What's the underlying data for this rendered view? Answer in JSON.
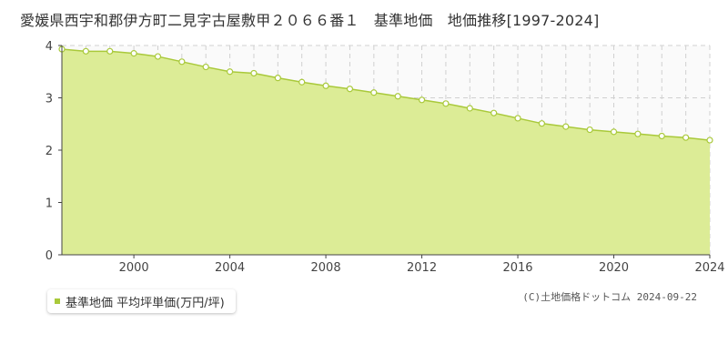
{
  "title": "愛媛県西宇和郡伊方町二見字古屋敷甲２０６６番１　基準地価　地価推移[1997-2024]",
  "legend_label": "基準地価 平均坪単価(万円/坪)",
  "credit": "(C)土地価格ドットコム 2024-09-22",
  "colors": {
    "fill": "#dcec96",
    "line": "#a9c93a",
    "grid": "#d0d0d0",
    "plot_bg": "#fafafa",
    "axis": "#444444"
  },
  "chart_data": {
    "type": "area",
    "title": "愛媛県西宇和郡伊方町二見字古屋敷甲２０６６番１　基準地価　地価推移[1997-2024]",
    "xlabel": "",
    "ylabel": "",
    "xlim": [
      1997,
      2024
    ],
    "ylim": [
      0,
      4
    ],
    "x_ticks": [
      2000,
      2004,
      2008,
      2012,
      2016,
      2020,
      2024
    ],
    "y_ticks": [
      0,
      1,
      2,
      3,
      4
    ],
    "grid": true,
    "legend": "bottom-left",
    "series": [
      {
        "name": "基準地価 平均坪単価(万円/坪)",
        "x": [
          1997,
          1998,
          1999,
          2000,
          2001,
          2002,
          2003,
          2004,
          2005,
          2006,
          2007,
          2008,
          2009,
          2010,
          2011,
          2012,
          2013,
          2014,
          2015,
          2016,
          2017,
          2018,
          2019,
          2020,
          2021,
          2022,
          2023,
          2024
        ],
        "y": [
          3.93,
          3.89,
          3.89,
          3.85,
          3.79,
          3.69,
          3.59,
          3.5,
          3.47,
          3.38,
          3.3,
          3.23,
          3.17,
          3.1,
          3.03,
          2.96,
          2.89,
          2.8,
          2.71,
          2.61,
          2.51,
          2.45,
          2.39,
          2.35,
          2.31,
          2.27,
          2.24,
          2.19
        ]
      }
    ]
  }
}
